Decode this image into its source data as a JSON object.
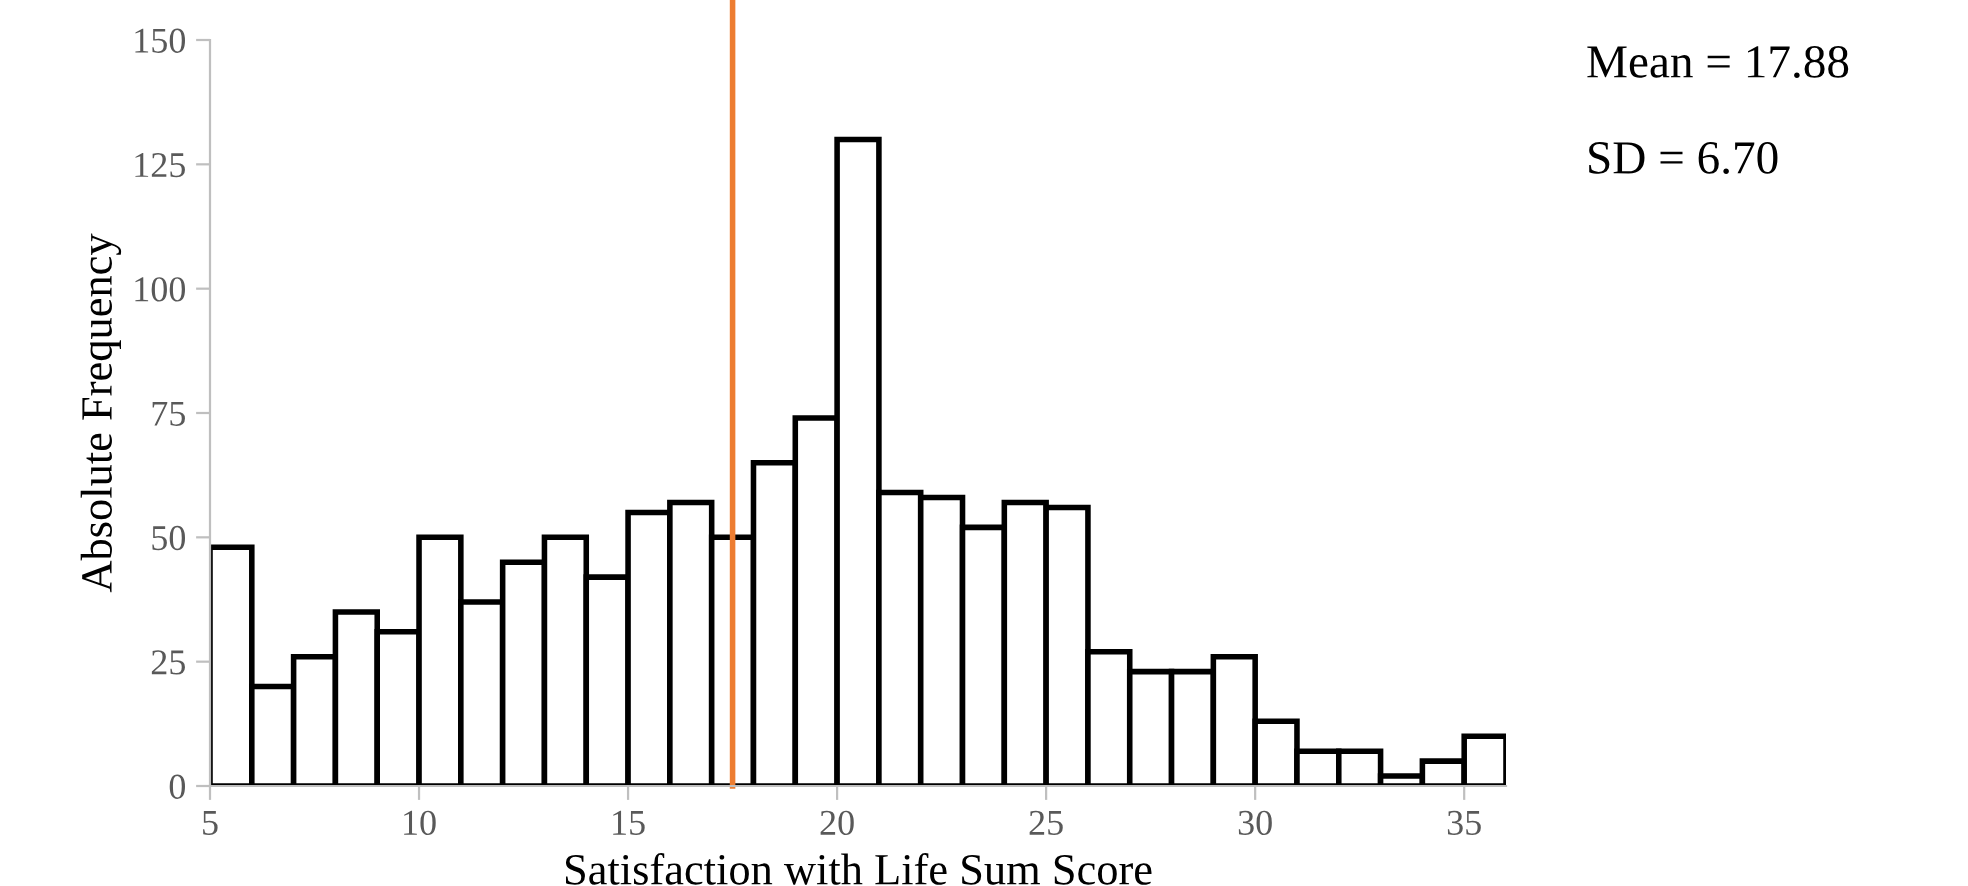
{
  "chart_data": {
    "type": "histogram",
    "xlabel": "Satisfaction with Life Sum Score",
    "ylabel": "Absolute Frequency",
    "bins": [
      5,
      6,
      7,
      8,
      9,
      10,
      11,
      12,
      13,
      14,
      15,
      16,
      17,
      18,
      19,
      20,
      21,
      22,
      23,
      24,
      25,
      26,
      27,
      28,
      29,
      30,
      31,
      32,
      33,
      34,
      35,
      36
    ],
    "values": [
      48,
      20,
      26,
      35,
      31,
      50,
      37,
      45,
      50,
      42,
      55,
      57,
      50,
      65,
      74,
      130,
      59,
      58,
      52,
      57,
      56,
      27,
      23,
      23,
      26,
      13,
      7,
      7,
      2,
      5,
      10
    ],
    "color": "#ffffff",
    "xlim": [
      5,
      36
    ],
    "xticks": [
      5,
      10,
      15,
      20,
      25,
      30,
      35
    ],
    "ylim": [
      0,
      150
    ],
    "yticks": [
      0,
      25,
      50,
      75,
      100,
      125,
      150
    ],
    "ref_lines": [
      {
        "axis": "x",
        "value": 17.5,
        "color": "#ed7d31"
      }
    ],
    "annotations": [
      "Mean = 17.88",
      "SD = 6.70"
    ],
    "grid": false
  }
}
